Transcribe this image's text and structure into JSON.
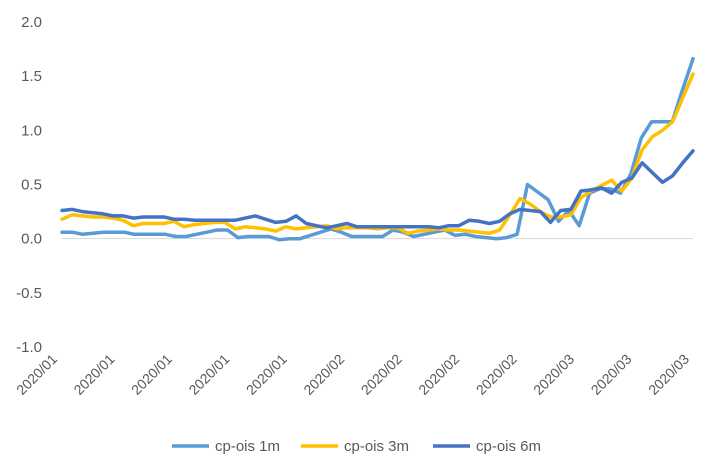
{
  "chart_data": {
    "type": "line",
    "title": "",
    "xlabel": "",
    "ylabel": "",
    "ylim": [
      -1.0,
      2.0
    ],
    "y_ticks": [
      "2.0",
      "1.5",
      "1.0",
      "0.5",
      "0.0",
      "-0.5",
      "-1.0"
    ],
    "x_tick_labels": [
      "2020/01",
      "2020/01",
      "2020/01",
      "2020/01",
      "2020/01",
      "2020/02",
      "2020/02",
      "2020/02",
      "2020/02",
      "2020/03",
      "2020/03",
      "2020/03"
    ],
    "grid": false,
    "legend_position": "bottom",
    "series": [
      {
        "name": "cp-ois 1m",
        "color": "#5B9BD5",
        "values": [
          0.06,
          0.06,
          0.04,
          0.05,
          0.06,
          0.06,
          0.06,
          0.04,
          0.04,
          0.04,
          0.04,
          0.02,
          0.02,
          0.04,
          0.06,
          0.08,
          0.08,
          0.01,
          0.02,
          0.02,
          0.02,
          -0.01,
          0.0,
          0.0,
          0.03,
          0.06,
          0.09,
          0.06,
          0.02,
          0.02,
          0.02,
          0.02,
          0.08,
          0.06,
          0.02,
          0.04,
          0.06,
          0.08,
          0.03,
          0.04,
          0.02,
          0.01,
          0.0,
          0.01,
          0.04,
          0.5,
          0.43,
          0.36,
          0.16,
          0.26,
          0.12,
          0.42,
          0.46,
          0.46,
          0.42,
          0.6,
          0.93,
          1.08,
          1.08,
          1.08,
          1.38,
          1.66
        ]
      },
      {
        "name": "cp-ois 3m",
        "color": "#FFC000",
        "values": [
          0.18,
          0.22,
          0.21,
          0.2,
          0.2,
          0.19,
          0.17,
          0.12,
          0.14,
          0.14,
          0.14,
          0.16,
          0.11,
          0.13,
          0.14,
          0.15,
          0.15,
          0.09,
          0.11,
          0.1,
          0.09,
          0.07,
          0.11,
          0.09,
          0.1,
          0.11,
          0.12,
          0.09,
          0.1,
          0.1,
          0.1,
          0.09,
          0.1,
          0.1,
          0.05,
          0.07,
          0.08,
          0.09,
          0.08,
          0.08,
          0.07,
          0.06,
          0.05,
          0.08,
          0.22,
          0.37,
          0.32,
          0.25,
          0.2,
          0.2,
          0.22,
          0.38,
          0.44,
          0.49,
          0.54,
          0.44,
          0.56,
          0.82,
          0.94,
          1.0,
          1.08,
          1.3,
          1.52
        ]
      },
      {
        "name": "cp-ois 6m",
        "color": "#4472C4",
        "values": [
          0.26,
          0.27,
          0.25,
          0.24,
          0.23,
          0.21,
          0.21,
          0.19,
          0.2,
          0.2,
          0.2,
          0.18,
          0.18,
          0.17,
          0.17,
          0.17,
          0.17,
          0.17,
          0.19,
          0.21,
          0.18,
          0.15,
          0.16,
          0.21,
          0.14,
          0.12,
          0.1,
          0.12,
          0.14,
          0.11,
          0.11,
          0.11,
          0.11,
          0.11,
          0.11,
          0.11,
          0.11,
          0.1,
          0.12,
          0.12,
          0.17,
          0.16,
          0.14,
          0.16,
          0.23,
          0.27,
          0.26,
          0.25,
          0.15,
          0.26,
          0.27,
          0.44,
          0.45,
          0.47,
          0.42,
          0.52,
          0.56,
          0.7,
          0.61,
          0.52,
          0.58,
          0.7,
          0.81
        ]
      }
    ]
  }
}
